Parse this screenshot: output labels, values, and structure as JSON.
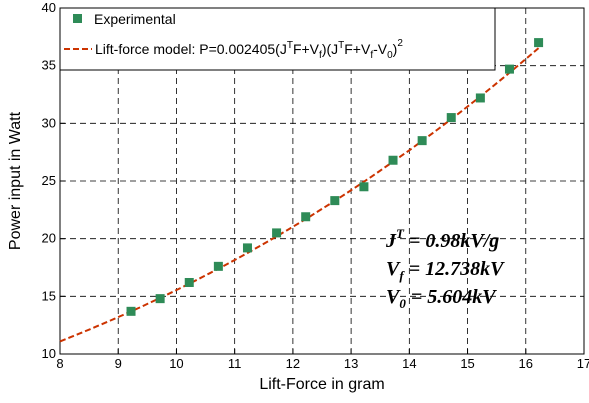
{
  "chart_data": {
    "type": "scatter",
    "xlabel": "Lift-Force in gram",
    "ylabel": "Power input in Watt",
    "xlim": [
      8,
      17
    ],
    "ylim": [
      10,
      40
    ],
    "x_ticks": [
      "8",
      "9",
      "10",
      "11",
      "12",
      "13",
      "14",
      "15",
      "16",
      "17"
    ],
    "y_ticks": [
      "10",
      "15",
      "20",
      "25",
      "30",
      "35",
      "40"
    ],
    "grid": true,
    "legend_position": "top-left",
    "series": [
      {
        "name": "Experimental",
        "style": "square-markers",
        "color": "#2e8b57",
        "x": [
          9.22,
          9.72,
          10.22,
          10.72,
          11.22,
          11.72,
          12.22,
          12.72,
          13.22,
          13.72,
          14.22,
          14.72,
          15.22,
          15.72,
          16.22
        ],
        "y": [
          13.7,
          14.8,
          16.2,
          17.6,
          19.2,
          20.5,
          21.9,
          23.3,
          24.5,
          26.8,
          28.5,
          30.5,
          32.2,
          34.7,
          37.0
        ]
      },
      {
        "name": "Lift-force model",
        "style": "dashed-line",
        "color": "#cc3300",
        "model": {
          "a": 0.002405,
          "JT": 0.98,
          "Vf": 12.738,
          "V0": 5.604,
          "x_from": 8,
          "x_to": 16.22
        }
      }
    ],
    "legend": {
      "experimental": "Experimental",
      "model_prefix": "Lift-force model: P=0.002405(J",
      "sup_T1": "T",
      "model_mid1": "F+V",
      "sub_f1": "f",
      "model_mid2": ")(J",
      "sup_T2": "T",
      "model_mid3": "F+V",
      "sub_f2": "f",
      "model_mid4": "-V",
      "sub_02": "0",
      "model_end": ")",
      "sup_2": "2"
    },
    "annotations": {
      "line1_main": "J",
      "line1_sup": "T",
      "line1_rest": " = 0.98kV/g",
      "line2_main": "V",
      "line2_sub": "f",
      "line2_rest": " = 12.738kV",
      "line3_main": "V",
      "line3_sub": "0",
      "line3_rest": " = 5.604kV"
    }
  }
}
